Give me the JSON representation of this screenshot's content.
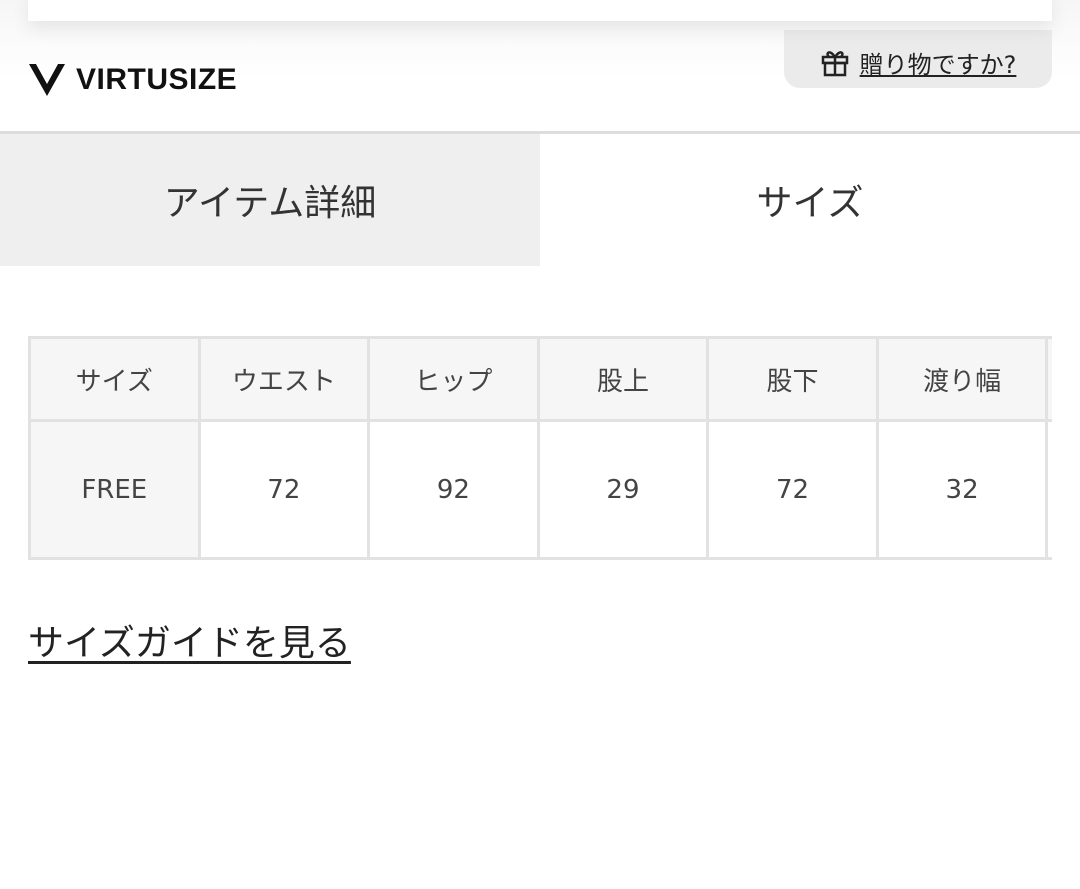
{
  "brand": {
    "name": "VIRTUSIZE"
  },
  "gift": {
    "label": "贈り物ですか?",
    "icon": "gift-icon"
  },
  "tabs": [
    {
      "label": "アイテム詳細",
      "active": false
    },
    {
      "label": "サイズ",
      "active": true
    }
  ],
  "size_table": {
    "headers": [
      "サイズ",
      "ウエスト",
      "ヒップ",
      "股上",
      "股下",
      "渡り幅",
      ""
    ],
    "rows": [
      [
        "FREE",
        "72",
        "92",
        "29",
        "72",
        "32",
        ""
      ]
    ]
  },
  "size_guide_link": "サイズガイドを見る"
}
